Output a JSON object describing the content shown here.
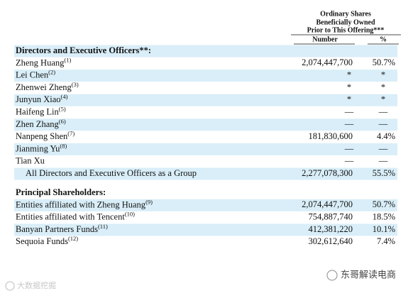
{
  "header": {
    "lines": [
      "Ordinary Shares",
      "Beneficially Owned",
      "Prior to This Offering***"
    ],
    "columns": [
      "Number",
      "%"
    ]
  },
  "sections": [
    {
      "title": "Directors and Executive Officers**:",
      "rows": [
        {
          "name": "Zheng Huang",
          "note": "(1)",
          "number": "2,074,447,700",
          "percent": "50.7%"
        },
        {
          "name": "Lei Chen",
          "note": "(2)",
          "number": "*",
          "percent": "*"
        },
        {
          "name": "Zhenwei Zheng",
          "note": "(3)",
          "number": "*",
          "percent": "*"
        },
        {
          "name": "Junyun Xiao",
          "note": "(4)",
          "number": "*",
          "percent": "*"
        },
        {
          "name": "Haifeng Lin",
          "note": "(5)",
          "number": "—",
          "percent": "—"
        },
        {
          "name": "Zhen Zhang",
          "note": "(6)",
          "number": "—",
          "percent": "—"
        },
        {
          "name": "Nanpeng Shen",
          "note": "(7)",
          "number": "181,830,600",
          "percent": "4.4%"
        },
        {
          "name": "Jianming Yu",
          "note": "(8)",
          "number": "—",
          "percent": "—"
        },
        {
          "name": "Tian Xu",
          "number": "—",
          "percent": "—"
        }
      ],
      "total": {
        "name": "All Directors and Executive Officers as a Group",
        "number": "2,277,078,300",
        "percent": "55.5%"
      }
    },
    {
      "title": "Principal Shareholders:",
      "rows": [
        {
          "name": "Entities affiliated with Zheng Huang",
          "note": "(9)",
          "number": "2,074,447,700",
          "percent": "50.7%"
        },
        {
          "name": "Entities affiliated with Tencent",
          "note": "(10)",
          "number": "754,887,740",
          "percent": "18.5%"
        },
        {
          "name": "Banyan Partners Funds",
          "note": "(11)",
          "number": "412,381,220",
          "percent": "10.1%"
        },
        {
          "name": "Sequoia Funds",
          "note": "(12)",
          "number": "302,612,640",
          "percent": "7.4%"
        }
      ]
    }
  ],
  "watermarks": [
    "大数据挖掘",
    "东哥解读电商"
  ]
}
